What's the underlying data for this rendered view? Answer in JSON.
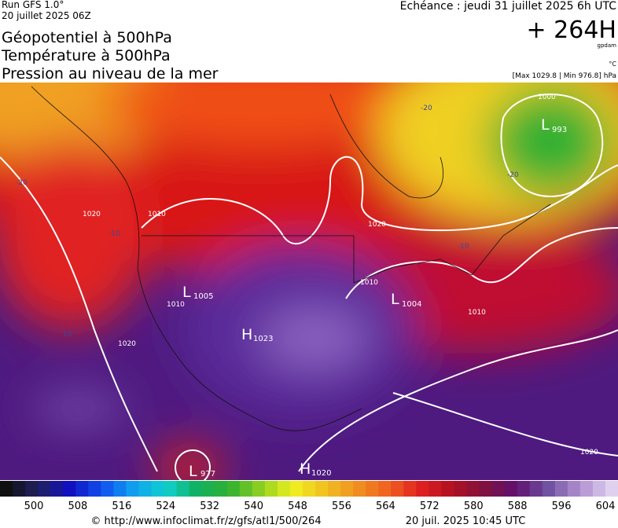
{
  "header": {
    "run": "Run GFS 1.0°",
    "run_date": "20 juillet 2025 06Z",
    "titles": [
      "Géopotentiel à 500hPa",
      "Température à 500hPa",
      "Pression au niveau de la mer"
    ],
    "valid": "Echéance : jeudi 31 juillet 2025 6h UTC",
    "lead": "+ 264H",
    "unit_geo": "gpdam",
    "unit_temp": "°C",
    "pressure_range": "[Max 1029.8 | Min 976.8] hPa"
  },
  "centers": [
    {
      "letter": "L",
      "value": "993"
    },
    {
      "letter": "L",
      "value": "1005"
    },
    {
      "letter": "L",
      "value": "1004"
    },
    {
      "letter": "H",
      "value": "1023"
    },
    {
      "letter": "L",
      "value": "977"
    },
    {
      "letter": "H",
      "value": "1020"
    }
  ],
  "isobar_labels": [
    "1000",
    "1010",
    "1020",
    "1010",
    "1020",
    "1010",
    "1020",
    "1020",
    "1010"
  ],
  "isotherm_labels": [
    "-20",
    "-20",
    "-20",
    "-10",
    "10",
    "-10"
  ],
  "scale": {
    "ticks": [
      500,
      508,
      516,
      524,
      532,
      540,
      548,
      556,
      564,
      572,
      580,
      588,
      596,
      604
    ]
  },
  "footer": {
    "url": "© http://www.infoclimat.fr/z/gfs/atl1/500/264",
    "issued": "20 juil. 2025 10:45 UTC"
  }
}
